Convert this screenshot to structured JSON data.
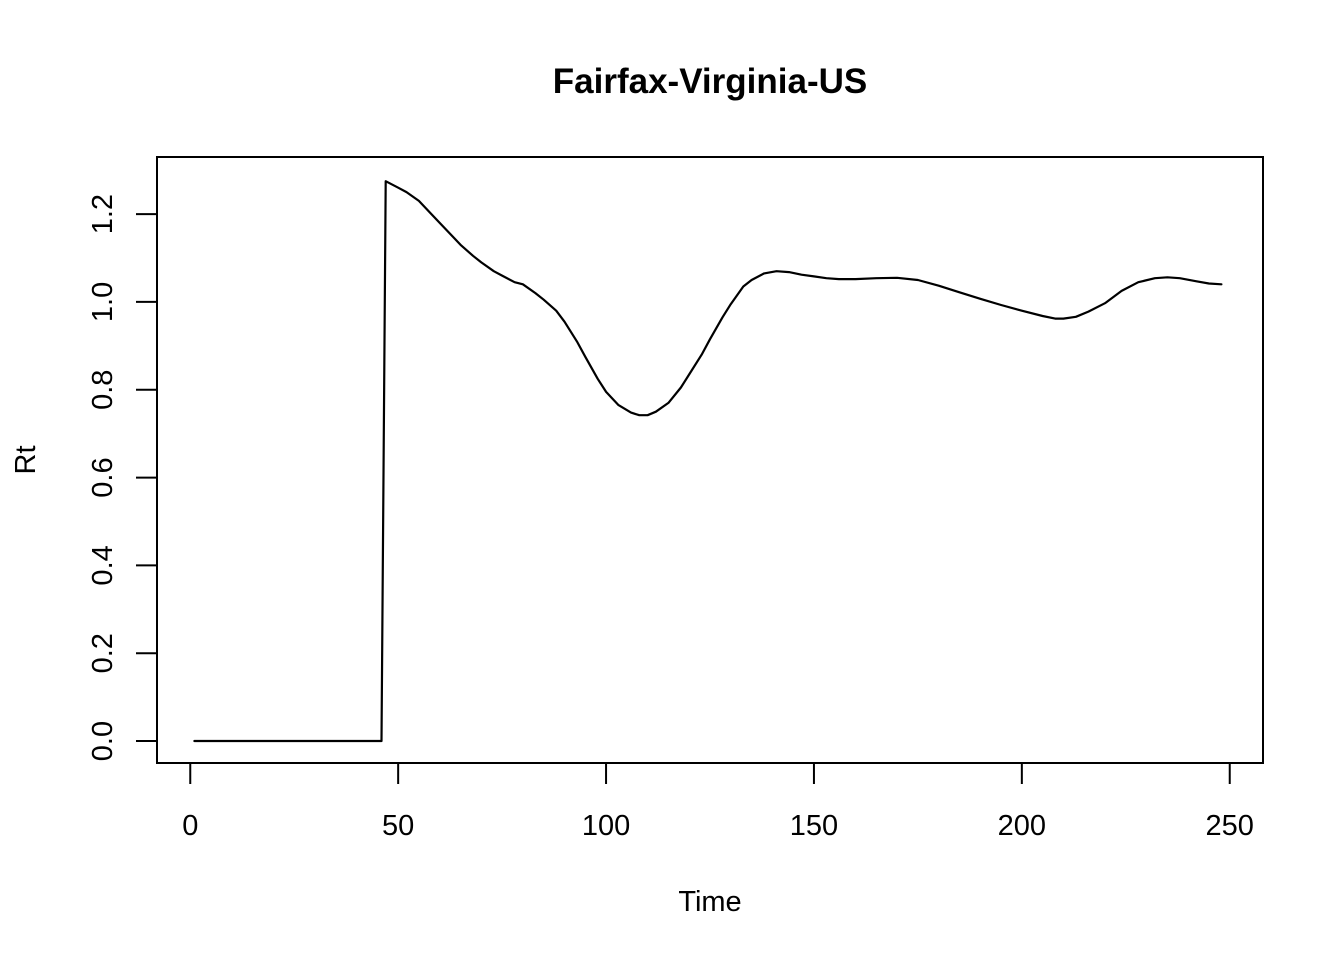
{
  "chart_data": {
    "type": "line",
    "title": "Fairfax-Virginia-US",
    "xlabel": "Time",
    "ylabel": "Rt",
    "xlim": [
      -8,
      258
    ],
    "ylim": [
      -0.05,
      1.33
    ],
    "xticks": [
      0,
      50,
      100,
      150,
      200,
      250
    ],
    "yticks": [
      0.0,
      0.2,
      0.4,
      0.6,
      0.8,
      1.0,
      1.2
    ],
    "xtick_labels": [
      "0",
      "50",
      "100",
      "150",
      "200",
      "250"
    ],
    "ytick_labels": [
      "0.0",
      "0.2",
      "0.4",
      "0.6",
      "0.8",
      "1.0",
      "1.2"
    ],
    "grid": false,
    "legend": "none",
    "series": [
      {
        "color": "#000000",
        "points": [
          [
            1,
            0.0
          ],
          [
            10,
            0.0
          ],
          [
            20,
            0.0
          ],
          [
            30,
            0.0
          ],
          [
            40,
            0.0
          ],
          [
            46,
            0.0
          ],
          [
            47,
            1.275
          ],
          [
            50,
            1.26
          ],
          [
            52,
            1.25
          ],
          [
            55,
            1.23
          ],
          [
            58,
            1.2
          ],
          [
            60,
            1.18
          ],
          [
            63,
            1.15
          ],
          [
            65,
            1.13
          ],
          [
            68,
            1.105
          ],
          [
            70,
            1.09
          ],
          [
            73,
            1.07
          ],
          [
            75,
            1.06
          ],
          [
            78,
            1.045
          ],
          [
            80,
            1.04
          ],
          [
            83,
            1.02
          ],
          [
            85,
            1.005
          ],
          [
            88,
            0.98
          ],
          [
            90,
            0.955
          ],
          [
            93,
            0.91
          ],
          [
            95,
            0.875
          ],
          [
            98,
            0.825
          ],
          [
            100,
            0.795
          ],
          [
            103,
            0.765
          ],
          [
            106,
            0.748
          ],
          [
            108,
            0.742
          ],
          [
            110,
            0.742
          ],
          [
            112,
            0.75
          ],
          [
            115,
            0.77
          ],
          [
            118,
            0.805
          ],
          [
            120,
            0.835
          ],
          [
            123,
            0.88
          ],
          [
            125,
            0.915
          ],
          [
            128,
            0.965
          ],
          [
            130,
            0.995
          ],
          [
            133,
            1.035
          ],
          [
            135,
            1.05
          ],
          [
            138,
            1.065
          ],
          [
            141,
            1.07
          ],
          [
            144,
            1.068
          ],
          [
            147,
            1.062
          ],
          [
            150,
            1.058
          ],
          [
            153,
            1.054
          ],
          [
            156,
            1.052
          ],
          [
            160,
            1.052
          ],
          [
            165,
            1.054
          ],
          [
            170,
            1.055
          ],
          [
            175,
            1.05
          ],
          [
            180,
            1.037
          ],
          [
            185,
            1.022
          ],
          [
            190,
            1.007
          ],
          [
            195,
            0.993
          ],
          [
            200,
            0.98
          ],
          [
            205,
            0.968
          ],
          [
            208,
            0.962
          ],
          [
            210,
            0.962
          ],
          [
            213,
            0.966
          ],
          [
            216,
            0.978
          ],
          [
            220,
            0.997
          ],
          [
            224,
            1.025
          ],
          [
            228,
            1.045
          ],
          [
            232,
            1.054
          ],
          [
            235,
            1.056
          ],
          [
            238,
            1.054
          ],
          [
            242,
            1.047
          ],
          [
            245,
            1.042
          ],
          [
            248,
            1.04
          ]
        ]
      }
    ]
  }
}
